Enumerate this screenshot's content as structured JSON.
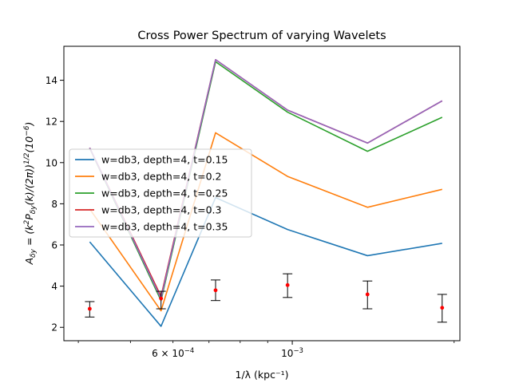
{
  "chart_data": {
    "type": "line",
    "title": "Cross Power Spectrum of varying Wavelets",
    "xlabel": "1/λ (kpc⁻¹)",
    "ylabel_parts": [
      "A",
      "δy",
      " = (k",
      "2",
      "P",
      "δy",
      "(k)/(2π))",
      "1/2",
      "(10",
      "−6",
      ")"
    ],
    "x_scale": "log",
    "xlim": [
      0.000376,
      0.00205
    ],
    "ylim": [
      1.35,
      15.65
    ],
    "x_ticks_major": [
      {
        "value": 0.001,
        "label_base": "10",
        "label_exp": "−3"
      }
    ],
    "x_ticks_minor": [
      {
        "value": 0.0004,
        "label": ""
      },
      {
        "value": 0.0005,
        "label": ""
      },
      {
        "value": 0.0006,
        "label_base": "6 × 10",
        "label_exp": "−4"
      },
      {
        "value": 0.0007,
        "label": ""
      },
      {
        "value": 0.0008,
        "label": ""
      },
      {
        "value": 0.0009,
        "label": ""
      },
      {
        "value": 0.002,
        "label": ""
      }
    ],
    "y_ticks": [
      2,
      4,
      6,
      8,
      10,
      12,
      14
    ],
    "x": [
      0.00042,
      0.00057,
      0.00072,
      0.00098,
      0.00138,
      0.0019
    ],
    "series": [
      {
        "name": "w=db3, depth=4, t=0.15",
        "color": "#1f77b4",
        "values": [
          6.15,
          2.05,
          8.3,
          6.75,
          5.48,
          6.08
        ]
      },
      {
        "name": "w=db3, depth=4, t=0.2",
        "color": "#ff7f0e",
        "values": [
          7.75,
          2.8,
          11.45,
          9.33,
          7.83,
          8.7
        ]
      },
      {
        "name": "w=db3, depth=4, t=0.25",
        "color": "#2ca02c",
        "values": [
          10.7,
          3.3,
          14.9,
          12.45,
          10.55,
          12.2
        ]
      },
      {
        "name": "w=db3, depth=4, t=0.3",
        "color": "#d62728",
        "values": [
          10.72,
          3.5,
          15.0,
          12.55,
          10.95,
          13.0
        ]
      },
      {
        "name": "w=db3, depth=4, t=0.35",
        "color": "#9467bd",
        "values": [
          10.72,
          3.4,
          15.0,
          12.55,
          10.95,
          13.0
        ]
      }
    ],
    "errorbars": {
      "color": "#000000",
      "marker_color": "#ff0000",
      "values": [
        2.9,
        3.4,
        3.8,
        4.05,
        3.6,
        2.95
      ],
      "lower": [
        2.5,
        2.9,
        3.3,
        3.45,
        2.9,
        2.25
      ],
      "upper": [
        3.25,
        3.75,
        4.3,
        4.6,
        4.25,
        3.6
      ]
    },
    "legend_position": "center-left",
    "grid": false
  }
}
